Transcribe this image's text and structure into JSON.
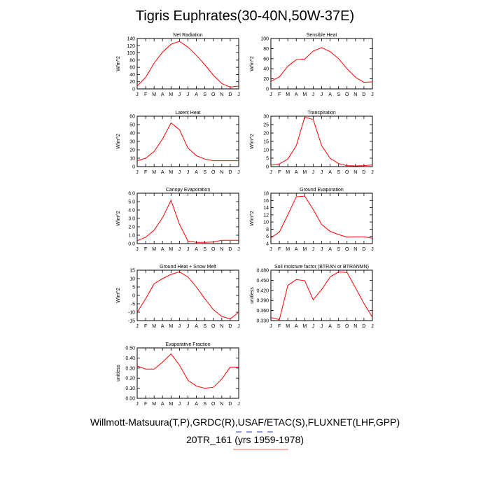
{
  "title": "Tigris Euphrates(30-40N,50W-37E)",
  "footer": {
    "credit": "Willmott-Matsuura(T,P),GRDC(R),USAF/ETAC(S),FLUXNET(LHF,GPP)",
    "case": "20TR_161 (yrs 1959-1978)"
  },
  "colors": {
    "line": "#ff0000",
    "axis": "#000000"
  },
  "chart_data": [
    {
      "type": "line",
      "title": "Net Radiation",
      "ylabel": "W/m^2",
      "categories": [
        "J",
        "F",
        "M",
        "A",
        "M",
        "J",
        "J",
        "A",
        "S",
        "O",
        "N",
        "D",
        "J"
      ],
      "values": [
        8,
        32,
        72,
        102,
        124,
        132,
        116,
        93,
        67,
        38,
        15,
        5,
        8
      ],
      "ylim": [
        0,
        140
      ],
      "yticks": [
        "0",
        "20",
        "40",
        "60",
        "80",
        "100",
        "120",
        "140"
      ]
    },
    {
      "type": "line",
      "title": "Sensible Heat",
      "ylabel": "W/m^2",
      "categories": [
        "J",
        "F",
        "M",
        "A",
        "M",
        "J",
        "J",
        "A",
        "S",
        "O",
        "N",
        "D",
        "J"
      ],
      "values": [
        15,
        24,
        45,
        58,
        59,
        75,
        82,
        74,
        60,
        40,
        23,
        13,
        14
      ],
      "ylim": [
        0,
        100
      ],
      "yticks": [
        "0",
        "20",
        "40",
        "60",
        "80",
        "100"
      ]
    },
    {
      "type": "line",
      "title": "Latent Heat",
      "ylabel": "W/m^2",
      "categories": [
        "J",
        "F",
        "M",
        "A",
        "M",
        "J",
        "J",
        "A",
        "S",
        "O",
        "N",
        "D",
        "J"
      ],
      "values": [
        7,
        10,
        18,
        33,
        52,
        44,
        22,
        13,
        9,
        7,
        7,
        7,
        7
      ],
      "ylim": [
        0,
        60
      ],
      "yticks": [
        "0",
        "10",
        "20",
        "30",
        "40",
        "50",
        "60"
      ]
    },
    {
      "type": "line",
      "title": "Transpiration",
      "ylabel": "W/m^2",
      "categories": [
        "J",
        "F",
        "M",
        "A",
        "M",
        "J",
        "J",
        "A",
        "S",
        "O",
        "N",
        "D",
        "J"
      ],
      "values": [
        0.8,
        1.6,
        4.5,
        12.5,
        29.5,
        28,
        12.5,
        5,
        1.8,
        0.6,
        0.4,
        0.6,
        1
      ],
      "ylim": [
        0,
        30
      ],
      "yticks": [
        "0",
        "5",
        "10",
        "15",
        "20",
        "25",
        "30"
      ]
    },
    {
      "type": "line",
      "title": "Canopy Evaporation",
      "ylabel": "W/m^2",
      "categories": [
        "J",
        "F",
        "M",
        "A",
        "M",
        "J",
        "J",
        "A",
        "S",
        "O",
        "N",
        "D",
        "J"
      ],
      "values": [
        0.35,
        0.75,
        1.6,
        3.1,
        5.15,
        2.3,
        0.3,
        0.15,
        0.15,
        0.2,
        0.4,
        0.4,
        0.4
      ],
      "ylim": [
        0,
        6
      ],
      "yticks": [
        "0.0",
        "1.0",
        "2.0",
        "3.0",
        "4.0",
        "5.0",
        "6.0"
      ]
    },
    {
      "type": "line",
      "title": "Ground Evaporation",
      "ylabel": "W/m^2",
      "categories": [
        "J",
        "F",
        "M",
        "A",
        "M",
        "J",
        "J",
        "A",
        "S",
        "O",
        "N",
        "D",
        "J"
      ],
      "values": [
        5.6,
        7.2,
        12,
        17,
        17.2,
        13.5,
        9.3,
        7.4,
        6.5,
        5.8,
        5.9,
        5.9,
        5.5
      ],
      "ylim": [
        4,
        18
      ],
      "yticks": [
        "4",
        "6",
        "8",
        "10",
        "12",
        "14",
        "16",
        "18"
      ]
    },
    {
      "type": "line",
      "title": "Ground Heat + Snow Melt",
      "ylabel": "W/m^2",
      "categories": [
        "J",
        "F",
        "M",
        "A",
        "M",
        "J",
        "J",
        "A",
        "S",
        "O",
        "N",
        "D",
        "J"
      ],
      "values": [
        -10,
        -2,
        7,
        10,
        12.5,
        14,
        11,
        5,
        -2,
        -8.5,
        -12.5,
        -14,
        -10
      ],
      "ylim": [
        -15,
        15
      ],
      "yticks": [
        "-15",
        "-10",
        "-5",
        "0",
        "5",
        "10",
        "15"
      ]
    },
    {
      "type": "line",
      "title": "Soil moisture factor (BTRAN or BTRANMN)",
      "ylabel": "unitless",
      "categories": [
        "J",
        "F",
        "M",
        "A",
        "M",
        "J",
        "J",
        "A",
        "S",
        "O",
        "N",
        "D",
        "J"
      ],
      "values": [
        0.339,
        0.333,
        0.435,
        0.452,
        0.449,
        0.392,
        0.422,
        0.46,
        0.475,
        0.473,
        0.428,
        0.381,
        0.34
      ],
      "ylim": [
        0.33,
        0.48
      ],
      "yticks": [
        "0.330",
        "0.360",
        "0.390",
        "0.420",
        "0.450",
        "0.480"
      ]
    },
    {
      "type": "line",
      "title": "Evaporative Fraction",
      "ylabel": "unitless",
      "categories": [
        "J",
        "F",
        "M",
        "A",
        "M",
        "J",
        "J",
        "A",
        "S",
        "O",
        "N",
        "D",
        "J"
      ],
      "values": [
        0.32,
        0.29,
        0.29,
        0.36,
        0.44,
        0.33,
        0.18,
        0.12,
        0.1,
        0.11,
        0.19,
        0.31,
        0.31
      ],
      "ylim": [
        0,
        0.5
      ],
      "yticks": [
        "0.00",
        "0.10",
        "0.20",
        "0.30",
        "0.40",
        "0.50"
      ]
    }
  ]
}
